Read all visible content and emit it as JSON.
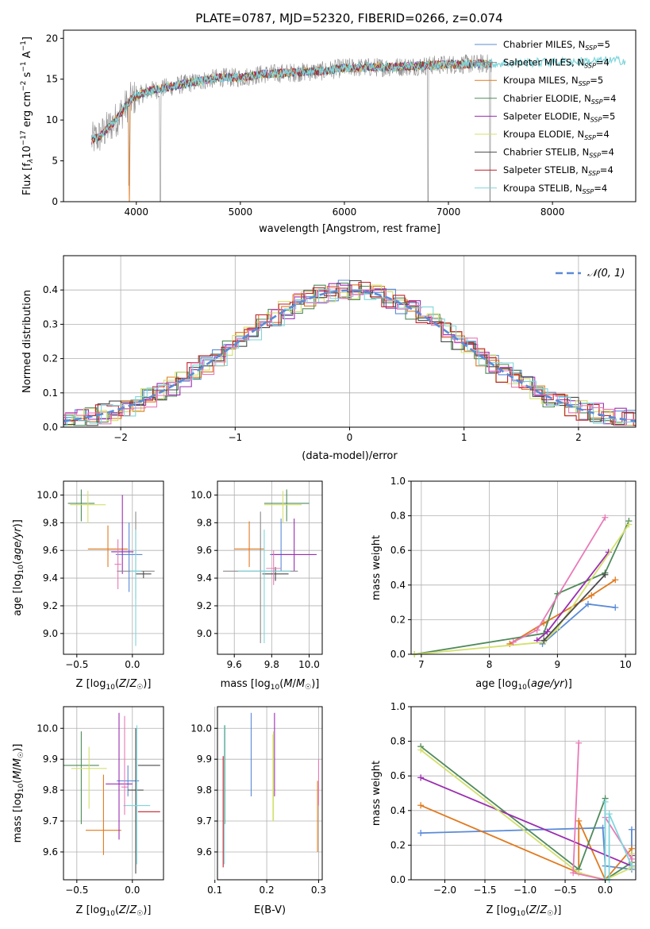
{
  "figure": {
    "title": "PLATE=0787, MJD=52320, FIBERID=0266, z=0.074"
  },
  "colors": {
    "series": [
      "#5b8bd6",
      "#8a8a8a",
      "#e07a1f",
      "#4f8a5b",
      "#9b2db0",
      "#d4e06e",
      "#4a4a4a",
      "#c0202a",
      "#7fd6dc"
    ],
    "pink": "#e87ab8",
    "green": "#3a9a3a",
    "grid": "#b0b0b0",
    "gauss": "#5b8bd6"
  },
  "chart_data": [
    {
      "id": "spectrum",
      "type": "line",
      "xlabel": "wavelength [Angstrom, rest frame]",
      "ylabel": "Flux [f",
      "xlim": [
        3300,
        8800
      ],
      "ylim": [
        0,
        21
      ],
      "xticks": [
        "4000",
        "5000",
        "6000",
        "7000",
        "8000"
      ],
      "yticks": [
        "0",
        "5",
        "10",
        "15",
        "20"
      ],
      "grid": false,
      "legend_position": "right",
      "legend": [
        {
          "name": "Chabrier MILES",
          "n": "5"
        },
        {
          "name": "Salpeter MILES",
          "n": "4"
        },
        {
          "name": "Kroupa MILES",
          "n": "5"
        },
        {
          "name": "Chabrier ELODIE",
          "n": "4"
        },
        {
          "name": "Salpeter ELODIE",
          "n": "5"
        },
        {
          "name": "Kroupa ELODIE",
          "n": "4"
        },
        {
          "name": "Chabrier STELIB",
          "n": "4"
        },
        {
          "name": "Salpeter STELIB",
          "n": "4"
        },
        {
          "name": "Kroupa STELIB",
          "n": "4"
        }
      ],
      "continuum": {
        "x": [
          3570,
          3650,
          3800,
          3950,
          4100,
          4300,
          4500,
          4800,
          5000,
          5200,
          5500,
          5800,
          6000,
          6500,
          7000,
          7400,
          8000,
          8700
        ],
        "y": [
          7.5,
          8.0,
          10.0,
          12.5,
          13.5,
          14.0,
          14.5,
          15.2,
          15.2,
          15.6,
          15.8,
          16.0,
          16.4,
          16.5,
          16.8,
          16.9,
          17.1,
          17.3
        ]
      }
    },
    {
      "id": "residuals",
      "type": "histogram",
      "xlabel": "(data-model)/error",
      "ylabel": "Normed distribution",
      "xlim": [
        -2.5,
        2.5
      ],
      "ylim": [
        0,
        0.5
      ],
      "xticks": [
        "−2",
        "−1",
        "0",
        "1",
        "2"
      ],
      "yticks": [
        "0.0",
        "0.1",
        "0.2",
        "0.3",
        "0.4"
      ],
      "grid": true,
      "legend_label": "N(0,1)",
      "legend_position": "top-right"
    },
    {
      "id": "age-vs-Z",
      "type": "scatter",
      "xlabel": "Z [log10(Z/Z☉)]",
      "ylabel": "age [log10(age/yr)]",
      "xlim": [
        -0.62,
        0.28
      ],
      "ylim": [
        8.85,
        10.1
      ],
      "xticks": [
        "−0.5",
        "0.0"
      ],
      "yticks": [
        "9.0",
        "9.2",
        "9.4",
        "9.6",
        "9.8",
        "10.0"
      ],
      "grid": true,
      "points": [
        {
          "x": -0.03,
          "y": 9.57,
          "xerr": 0.12,
          "ylo": 9.3,
          "yhi": 9.8
        },
        {
          "x": -0.22,
          "y": 9.61,
          "xerr": 0.18,
          "ylo": 9.48,
          "yhi": 9.78
        },
        {
          "x": -0.46,
          "y": 9.94,
          "xerr": 0.12,
          "ylo": 9.81,
          "yhi": 10.04
        },
        {
          "x": -0.09,
          "y": 9.59,
          "xerr": 0.1,
          "ylo": 9.43,
          "yhi": 10.0
        },
        {
          "x": -0.4,
          "y": 9.93,
          "xerr": 0.16,
          "ylo": 9.8,
          "yhi": 10.03
        },
        {
          "x": 0.03,
          "y": 9.45,
          "xerr": 0.17,
          "ylo": 9.25,
          "yhi": 9.88
        },
        {
          "x": 0.1,
          "y": 9.43,
          "xerr": 0.07,
          "ylo": 9.4,
          "yhi": 9.45
        },
        {
          "x": 0.03,
          "y": 9.45,
          "xerr": 0.05,
          "ylo": 8.91,
          "yhi": 9.75
        },
        {
          "x": -0.13,
          "y": 9.5,
          "xerr": 0.03,
          "ylo": 9.32,
          "yhi": 9.68
        }
      ]
    },
    {
      "id": "age-vs-mass",
      "type": "scatter",
      "xlabel": "mass [log10(M/M☉)]",
      "ylabel": "",
      "xlim": [
        9.51,
        10.07
      ],
      "ylim": [
        8.85,
        10.1
      ],
      "xticks": [
        "9.6",
        "9.8",
        "10.0"
      ],
      "yticks": [
        "9.0",
        "9.2",
        "9.4",
        "9.6",
        "9.8",
        "10.0"
      ],
      "grid": true,
      "points": [
        {
          "x": 9.85,
          "y": 9.57,
          "xerr": 0.06,
          "ylo": 9.45,
          "yhi": 9.83
        },
        {
          "x": 9.68,
          "y": 9.61,
          "xerr": 0.08,
          "ylo": 9.48,
          "yhi": 9.81
        },
        {
          "x": 9.88,
          "y": 9.94,
          "xerr": 0.12,
          "ylo": 9.81,
          "yhi": 10.04
        },
        {
          "x": 9.92,
          "y": 9.57,
          "xerr": 0.12,
          "ylo": 9.45,
          "yhi": 9.83
        },
        {
          "x": 9.86,
          "y": 9.93,
          "xerr": 0.1,
          "ylo": 9.8,
          "yhi": 10.03
        },
        {
          "x": 9.74,
          "y": 9.45,
          "xerr": 0.2,
          "ylo": 8.93,
          "yhi": 9.88
        },
        {
          "x": 9.82,
          "y": 9.43,
          "xerr": 0.07,
          "ylo": 9.38,
          "yhi": 9.48
        },
        {
          "x": 9.76,
          "y": 9.45,
          "xerr": 0.14,
          "ylo": 8.93,
          "yhi": 9.75
        },
        {
          "x": 9.81,
          "y": 9.47,
          "xerr": 0.04,
          "ylo": 9.35,
          "yhi": 9.6
        }
      ]
    },
    {
      "id": "massweight-vs-age",
      "type": "line",
      "xlabel": "age [log10(age/yr)]",
      "ylabel": "mass weight",
      "xlim": [
        6.85,
        10.15
      ],
      "ylim": [
        0,
        1
      ],
      "xticks": [
        "7",
        "8",
        "9",
        "10"
      ],
      "yticks": [
        "0.0",
        "0.2",
        "0.4",
        "0.6",
        "0.8",
        "1.0"
      ],
      "grid": true,
      "series": [
        {
          "x": [
            8.78,
            9.45,
            9.85
          ],
          "y": [
            0.06,
            0.29,
            0.27
          ]
        },
        {
          "x": [
            8.3,
            8.8,
            9.5,
            9.85
          ],
          "y": [
            0.06,
            0.18,
            0.34,
            0.43
          ]
        },
        {
          "x": [
            6.9,
            8.8,
            9.0,
            9.7,
            10.05
          ],
          "y": [
            0.0,
            0.12,
            0.35,
            0.47,
            0.77
          ]
        },
        {
          "x": [
            8.7,
            8.85,
            9.75
          ],
          "y": [
            0.08,
            0.13,
            0.59
          ]
        },
        {
          "x": [
            6.9,
            8.8,
            9.0,
            10.05
          ],
          "y": [
            0.0,
            0.07,
            0.15,
            0.75
          ]
        },
        {
          "x": [
            8.8,
            9.7
          ],
          "y": [
            0.08,
            0.46
          ]
        },
        {
          "x": [
            8.35,
            8.7,
            9.7
          ],
          "y": [
            0.07,
            0.14,
            0.79
          ]
        }
      ]
    },
    {
      "id": "mass-vs-Z",
      "type": "scatter",
      "xlabel": "Z [log10(Z/Z☉)]",
      "ylabel": "mass [log10(M/M☉)]",
      "xlim": [
        -0.62,
        0.28
      ],
      "ylim": [
        9.51,
        10.07
      ],
      "xticks": [
        "−0.5",
        "0.0"
      ],
      "yticks": [
        "9.6",
        "9.7",
        "9.8",
        "9.9",
        "10.0"
      ],
      "grid": true,
      "points": [
        {
          "x": -0.04,
          "y": 9.83,
          "xerr": 0.1,
          "ylo": 9.78,
          "yhi": 9.88
        },
        {
          "x": -0.26,
          "y": 9.67,
          "xerr": 0.16,
          "ylo": 9.59,
          "yhi": 9.85
        },
        {
          "x": -0.46,
          "y": 9.88,
          "xerr": 0.16,
          "ylo": 9.69,
          "yhi": 9.99
        },
        {
          "x": -0.12,
          "y": 9.82,
          "xerr": 0.12,
          "ylo": 9.64,
          "yhi": 10.05
        },
        {
          "x": -0.39,
          "y": 9.87,
          "xerr": 0.16,
          "ylo": 9.74,
          "yhi": 9.94
        },
        {
          "x": 0.03,
          "y": 9.8,
          "xerr": 0.07,
          "ylo": 9.53,
          "yhi": 10.0
        },
        {
          "x": 0.15,
          "y": 9.73,
          "xerr": 0.1,
          "ylo": 9.73,
          "yhi": 9.73
        },
        {
          "x": 0.15,
          "y": 9.88,
          "xerr": 0.1,
          "ylo": 9.88,
          "yhi": 9.88
        },
        {
          "x": 0.04,
          "y": 9.75,
          "xerr": 0.12,
          "ylo": 9.56,
          "yhi": 10.01
        },
        {
          "x": -0.07,
          "y": 9.81,
          "xerr": 0.03,
          "ylo": 9.72,
          "yhi": 10.04
        }
      ]
    },
    {
      "id": "mass-vs-ebv",
      "type": "scatter",
      "xlabel": "E(B-V)",
      "ylabel": "",
      "xlim": [
        0.105,
        0.307
      ],
      "ylim": [
        9.51,
        10.07
      ],
      "xticks": [
        "0.1",
        "0.2",
        "0.3"
      ],
      "yticks": [
        "9.6",
        "9.7",
        "9.8",
        "9.9",
        "10.0"
      ],
      "grid": true,
      "points": [
        {
          "x": 0.17,
          "y": 9.83,
          "ylo": 9.78,
          "yhi": 10.05
        },
        {
          "x": 0.119,
          "y": 9.88,
          "ylo": 9.69,
          "yhi": 10.01
        },
        {
          "x": 0.215,
          "y": 9.88,
          "ylo": 9.78,
          "yhi": 10.05
        },
        {
          "x": 0.212,
          "y": 9.87,
          "ylo": 9.7,
          "yhi": 9.98
        },
        {
          "x": 0.298,
          "y": 9.75,
          "ylo": 9.6,
          "yhi": 9.83
        },
        {
          "x": 0.118,
          "y": 9.8,
          "ylo": 9.56,
          "yhi": 10.01
        },
        {
          "x": 0.116,
          "y": 9.75,
          "ylo": 9.55,
          "yhi": 9.91
        },
        {
          "x": 0.3,
          "y": 9.88,
          "ylo": 9.75,
          "yhi": 9.9
        },
        {
          "x": 0.213,
          "y": 9.82,
          "ylo": 9.7,
          "yhi": 9.99
        }
      ]
    },
    {
      "id": "massweight-vs-Z",
      "type": "line",
      "xlabel": "Z [log10(Z/Z☉)]",
      "ylabel": "mass weight",
      "xlim": [
        -2.42,
        0.38
      ],
      "ylim": [
        0,
        1
      ],
      "xticks": [
        "−2.0",
        "−1.5",
        "−1.0",
        "−0.5",
        "0.0"
      ],
      "yticks": [
        "0.0",
        "0.2",
        "0.4",
        "0.6",
        "0.8",
        "1.0"
      ],
      "grid": true,
      "series": [
        {
          "x": [
            -2.3,
            -0.03,
            0.0,
            0.33,
            0.33
          ],
          "y": [
            0.27,
            0.3,
            0.08,
            0.06,
            0.29
          ]
        },
        {
          "x": [
            -2.3,
            -0.33,
            -0.33,
            0.0,
            0.33
          ],
          "y": [
            0.43,
            0.04,
            0.34,
            0.0,
            0.18
          ]
        },
        {
          "x": [
            -2.3,
            -0.33,
            0.0,
            0.0,
            0.33
          ],
          "y": [
            0.77,
            0.06,
            0.47,
            0.0,
            0.1
          ]
        },
        {
          "x": [
            -2.3,
            0.33,
            0.33
          ],
          "y": [
            0.59,
            0.08,
            0.14
          ]
        },
        {
          "x": [
            -2.3,
            -0.33,
            0.0,
            0.33,
            0.33
          ],
          "y": [
            0.75,
            0.04,
            0.0,
            0.07,
            0.15
          ]
        },
        {
          "x": [
            -0.33,
            -0.4,
            0.0,
            0.0,
            0.33
          ],
          "y": [
            0.79,
            0.04,
            0.0,
            0.36,
            0.12
          ]
        },
        {
          "x": [
            0.0,
            0.0,
            0.05,
            0.05,
            0.33
          ],
          "y": [
            0.45,
            0.0,
            0.0,
            0.38,
            0.08
          ]
        }
      ]
    }
  ]
}
